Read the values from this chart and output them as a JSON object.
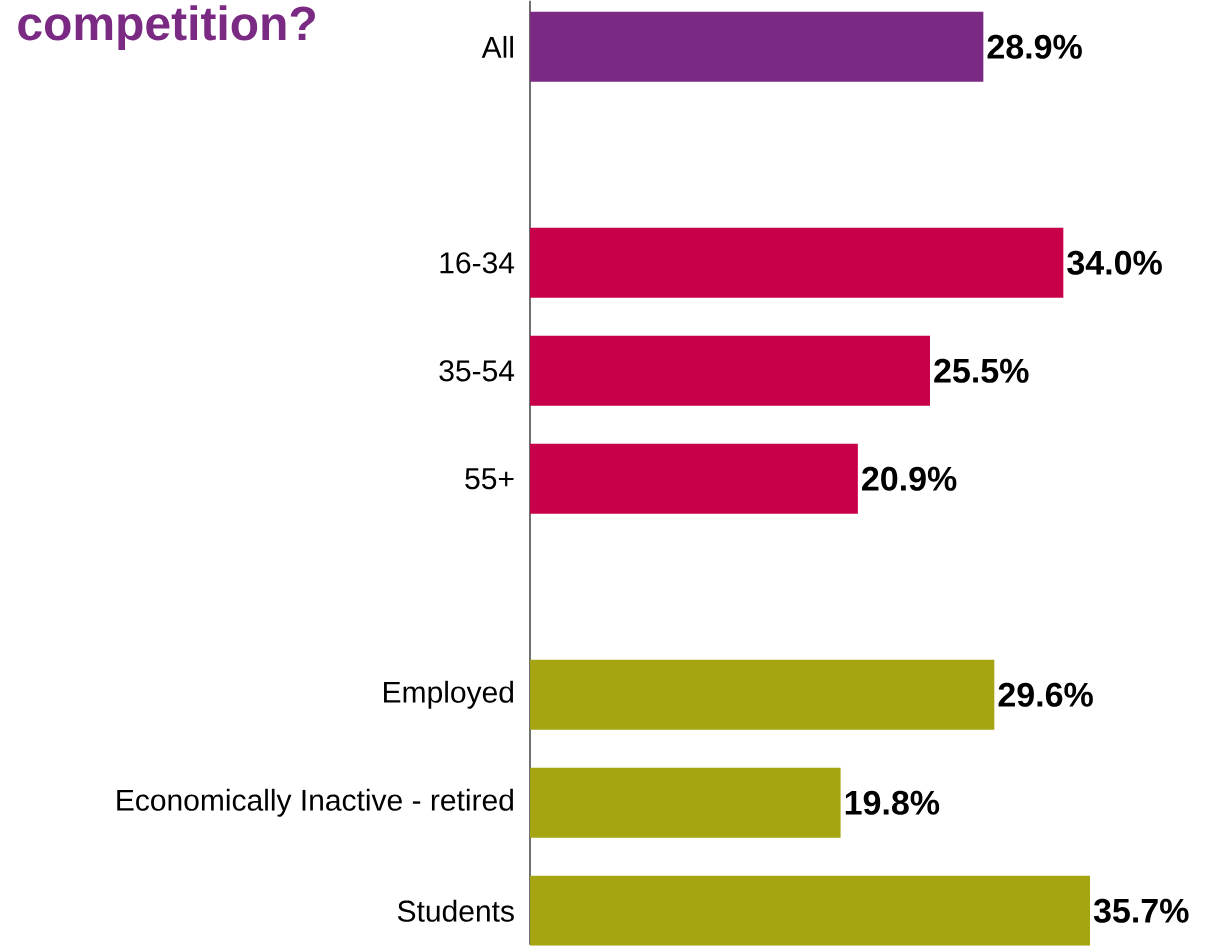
{
  "chart_data": {
    "type": "bar",
    "orientation": "horizontal",
    "title": "competition?",
    "categories": [
      "All",
      null,
      "16-34",
      "35-54",
      "55+",
      null,
      "Employed",
      "Economically Inactive - retired",
      "Students"
    ],
    "values": [
      28.9,
      null,
      34.0,
      25.5,
      20.9,
      null,
      29.6,
      19.8,
      35.7
    ],
    "colors": [
      "#7b2a84",
      null,
      "#c8004a",
      "#c8004a",
      "#c8004a",
      null,
      "#a5a512",
      "#a5a512",
      "#a5a512"
    ],
    "value_labels": [
      "28.9%",
      null,
      "34.0%",
      "25.5%",
      "20.9%",
      null,
      "29.6%",
      "19.8%",
      "35.7%"
    ]
  }
}
